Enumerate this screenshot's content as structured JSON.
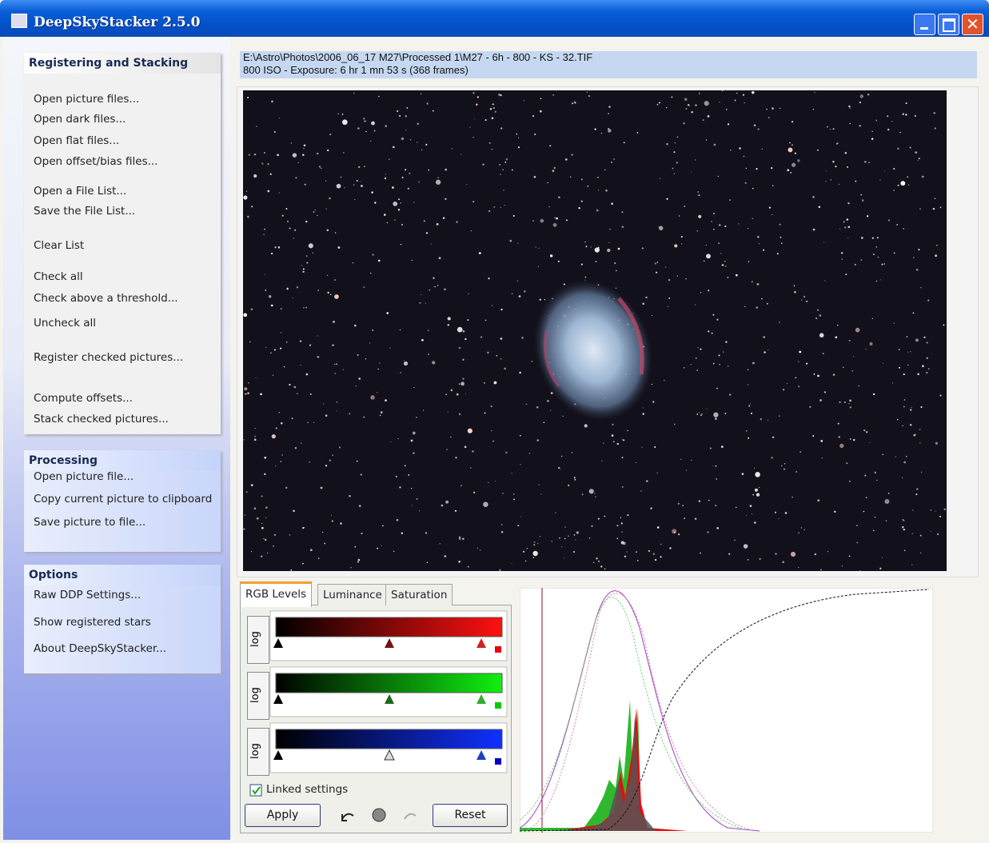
{
  "window": {
    "title": "DeepSkyStacker 2.5.0"
  },
  "sidebar": {
    "sections": [
      {
        "title": "Registering and Stacking",
        "items": [
          "Open picture files...",
          "Open dark files...",
          "Open flat files...",
          "Open offset/bias files...",
          "Open a File List...",
          "Save the File List...",
          "Clear List",
          "Check all",
          "Check above a threshold...",
          "Uncheck all",
          "Register checked pictures...",
          "Compute offsets...",
          "Stack checked pictures..."
        ]
      },
      {
        "title": "Processing",
        "items": [
          "Open picture file...",
          "Copy current picture to clipboard",
          "Save picture to file..."
        ]
      },
      {
        "title": "Options",
        "items": [
          "Raw DDP Settings...",
          "Show registered stars",
          "About DeepSkyStacker..."
        ]
      }
    ]
  },
  "info": {
    "path": "E:\\Astro\\Photos\\2006_06_17 M27\\Processed 1\\M27 - 6h - 800 - KS - 32.TIF",
    "details": "800 ISO - Exposure: 6 hr 1 mn 53 s (368 frames)"
  },
  "levels": {
    "tabs": [
      "RGB Levels",
      "Luminance",
      "Saturation"
    ],
    "log_labels": [
      "log",
      "log",
      "log"
    ],
    "linked_settings": "Linked settings",
    "buttons": {
      "apply": "Apply",
      "reset": "Reset"
    }
  }
}
